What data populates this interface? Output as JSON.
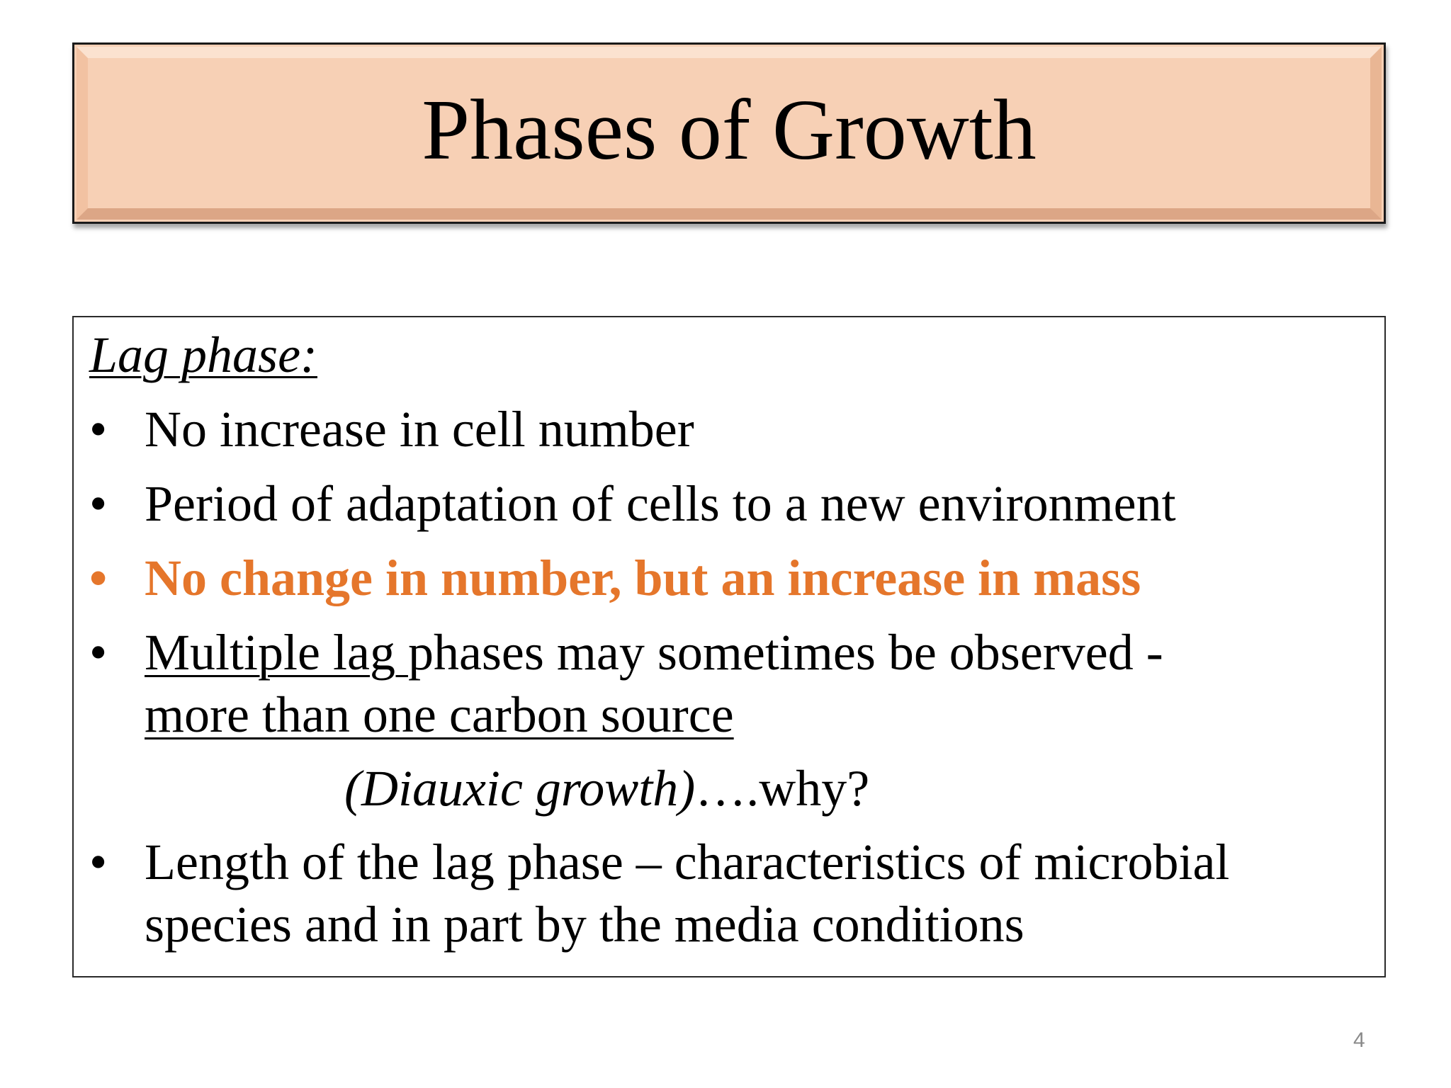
{
  "slide": {
    "title": "Phases of Growth",
    "heading": "Lag phase:",
    "bullets": [
      {
        "text": "No increase in cell number"
      },
      {
        "text": "Period of adaptation of cells to a new environment"
      },
      {
        "text": "No change in number, but an increase in mass",
        "color": "#e5762b"
      },
      {
        "part1_underlined": "Multiple lag ",
        "part1_rest": "phases may sometimes be observed -",
        "part2_underlined": "more than one carbon source"
      },
      {
        "line1": "Length of the lag phase – characteristics of microbial",
        "line2": "species and in part by the media conditions"
      }
    ],
    "diauxic_italic": "(Diauxic  growth)",
    "diauxic_rest": "….why?",
    "bullet_symbol": "•",
    "page_number": "4"
  }
}
